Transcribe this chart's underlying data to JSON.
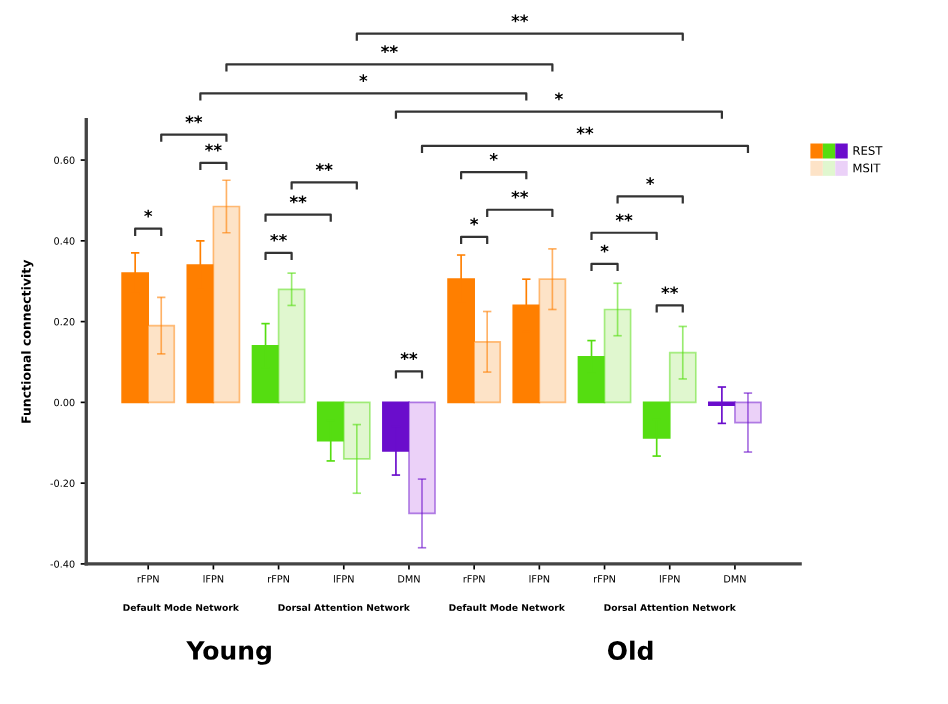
{
  "chart_data": {
    "type": "bar",
    "ylabel": "Functional connectivity",
    "categories": [
      "rFPN",
      "lFPN",
      "rFPN",
      "lFPN",
      "DMN",
      "rFPN",
      "lFPN",
      "rFPN",
      "lFPN",
      "DMN"
    ],
    "series": [
      {
        "name": "REST",
        "colors": [
          "#ff7f00",
          "#ff7f00",
          "#55dd11",
          "#55dd11",
          "#6a0dcc",
          "#ff7f00",
          "#ff7f00",
          "#55dd11",
          "#55dd11",
          "#6a0dcc"
        ],
        "values": [
          0.32,
          0.34,
          0.14,
          -0.095,
          -0.12,
          0.305,
          0.24,
          0.113,
          -0.088,
          -0.007
        ],
        "errors": [
          0.05,
          0.06,
          0.055,
          0.05,
          0.06,
          0.06,
          0.065,
          0.04,
          0.045,
          0.045
        ]
      },
      {
        "name": "MSIT",
        "colors": [
          "#fde3c7",
          "#fde3c7",
          "#e0f7cf",
          "#e0f7cf",
          "#ebd1f8",
          "#fde3c7",
          "#fde3c7",
          "#e0f7cf",
          "#e0f7cf",
          "#ebd1f8"
        ],
        "values": [
          0.19,
          0.485,
          0.28,
          -0.14,
          -0.275,
          0.15,
          0.305,
          0.23,
          0.123,
          -0.05
        ],
        "errors": [
          0.07,
          0.065,
          0.04,
          0.085,
          0.085,
          0.075,
          0.075,
          0.065,
          0.065,
          0.073
        ]
      }
    ],
    "ylim": [
      -0.4,
      0.7
    ],
    "yticks": [
      {
        "value": -0.4,
        "label": "-0.40"
      },
      {
        "value": -0.2,
        "label": "-0.20"
      },
      {
        "value": 0,
        "label": "0.00"
      },
      {
        "value": 0.2,
        "label": "0.20"
      },
      {
        "value": 0.4,
        "label": "0.40"
      },
      {
        "value": 0.6,
        "label": "0.60"
      }
    ],
    "grid": false,
    "legend": "top right",
    "annotations": [
      "*",
      "**",
      "**",
      "**",
      "**",
      "**",
      "**",
      "*",
      "*",
      "**",
      "*",
      "**",
      "*",
      "**",
      "**",
      "**",
      "*",
      "*",
      "**",
      "Default Mode Network",
      "Dorsal Attention Network",
      "Default Mode Network",
      "Dorsal Attention Network",
      "Young",
      "Old"
    ]
  }
}
